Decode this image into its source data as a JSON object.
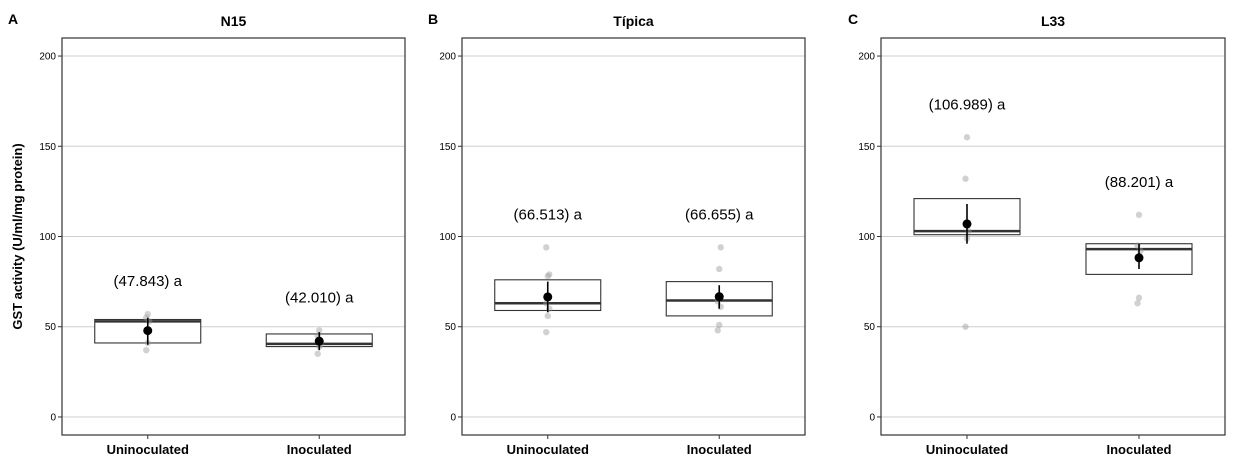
{
  "y_axis_label": "GST activity (U/ml/mg protein)",
  "chart_data": [
    {
      "type": "boxplot",
      "panel_letter": "A",
      "title": "N15",
      "ylim": [
        -10,
        210
      ],
      "yticks": [
        0,
        50,
        100,
        150,
        200
      ],
      "grid": true,
      "categories": [
        "Uninoculated",
        "Inoculated"
      ],
      "groups": [
        {
          "min": 41,
          "q1": 41,
          "median": 53,
          "q3": 54,
          "max": 54,
          "mean": 47.843,
          "err_low": 40,
          "err_high": 55,
          "points": [
            37,
            41,
            53,
            55,
            57
          ],
          "annotation": "(47.843) a"
        },
        {
          "min": 39,
          "q1": 39,
          "median": 40.5,
          "q3": 46,
          "max": 46,
          "mean": 42.01,
          "err_low": 37,
          "err_high": 47,
          "points": [
            35,
            39,
            40,
            45,
            48
          ],
          "annotation": "(42.010) a"
        }
      ]
    },
    {
      "type": "boxplot",
      "panel_letter": "B",
      "title": "Típica",
      "ylim": [
        -10,
        210
      ],
      "yticks": [
        0,
        50,
        100,
        150,
        200
      ],
      "grid": true,
      "categories": [
        "Uninoculated",
        "Inoculated"
      ],
      "groups": [
        {
          "min": 59,
          "q1": 59,
          "median": 63,
          "q3": 76,
          "max": 76,
          "mean": 66.513,
          "err_low": 58,
          "err_high": 75,
          "points": [
            47,
            56,
            60,
            63,
            78,
            79,
            94
          ],
          "annotation": "(66.513) a"
        },
        {
          "min": 56,
          "q1": 56,
          "median": 64.5,
          "q3": 75,
          "max": 75,
          "mean": 66.655,
          "err_low": 60,
          "err_high": 73,
          "points": [
            48,
            51,
            61,
            64,
            82,
            94
          ],
          "annotation": "(66.655) a"
        }
      ]
    },
    {
      "type": "boxplot",
      "panel_letter": "C",
      "title": "L33",
      "ylim": [
        -10,
        210
      ],
      "yticks": [
        0,
        50,
        100,
        150,
        200
      ],
      "grid": true,
      "categories": [
        "Uninoculated",
        "Inoculated"
      ],
      "groups": [
        {
          "min": 101,
          "q1": 101,
          "median": 103,
          "q3": 121,
          "max": 121,
          "mean": 106.989,
          "err_low": 96,
          "err_high": 118,
          "points": [
            50,
            99,
            103,
            132,
            155
          ],
          "annotation": "(106.989) a"
        },
        {
          "min": 79,
          "q1": 79,
          "median": 93,
          "q3": 96,
          "max": 96,
          "mean": 88.201,
          "err_low": 82,
          "err_high": 96,
          "points": [
            63,
            66,
            92,
            95,
            112
          ],
          "annotation": "(88.201) a"
        }
      ]
    }
  ]
}
